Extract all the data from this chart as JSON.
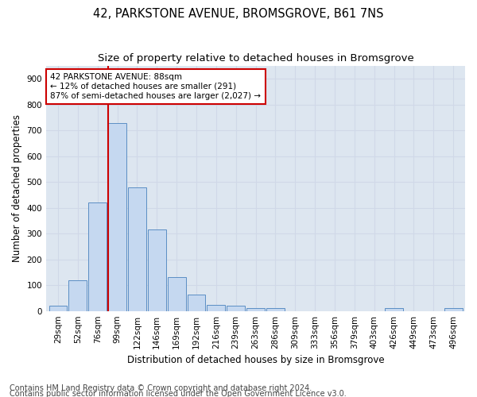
{
  "title": "42, PARKSTONE AVENUE, BROMSGROVE, B61 7NS",
  "subtitle": "Size of property relative to detached houses in Bromsgrove",
  "xlabel": "Distribution of detached houses by size in Bromsgrove",
  "ylabel": "Number of detached properties",
  "footnote1": "Contains HM Land Registry data © Crown copyright and database right 2024.",
  "footnote2": "Contains public sector information licensed under the Open Government Licence v3.0.",
  "bin_labels": [
    "29sqm",
    "52sqm",
    "76sqm",
    "99sqm",
    "122sqm",
    "146sqm",
    "169sqm",
    "192sqm",
    "216sqm",
    "239sqm",
    "263sqm",
    "286sqm",
    "309sqm",
    "333sqm",
    "356sqm",
    "379sqm",
    "403sqm",
    "426sqm",
    "449sqm",
    "473sqm",
    "496sqm"
  ],
  "bar_values": [
    20,
    120,
    420,
    730,
    480,
    315,
    130,
    65,
    25,
    20,
    10,
    10,
    0,
    0,
    0,
    0,
    0,
    10,
    0,
    0,
    10
  ],
  "bar_color": "#c5d8f0",
  "bar_edge_color": "#5b8ec4",
  "vline_color": "#cc0000",
  "annotation_text": "42 PARKSTONE AVENUE: 88sqm\n← 12% of detached houses are smaller (291)\n87% of semi-detached houses are larger (2,027) →",
  "annotation_box_color": "#cc0000",
  "ylim": [
    0,
    950
  ],
  "yticks": [
    0,
    100,
    200,
    300,
    400,
    500,
    600,
    700,
    800,
    900
  ],
  "grid_color": "#d0d8e8",
  "bg_color": "#dde6f0",
  "title_fontsize": 10.5,
  "subtitle_fontsize": 9.5,
  "axis_label_fontsize": 8.5,
  "tick_fontsize": 7.5,
  "annotation_fontsize": 7.5,
  "footnote_fontsize": 7
}
